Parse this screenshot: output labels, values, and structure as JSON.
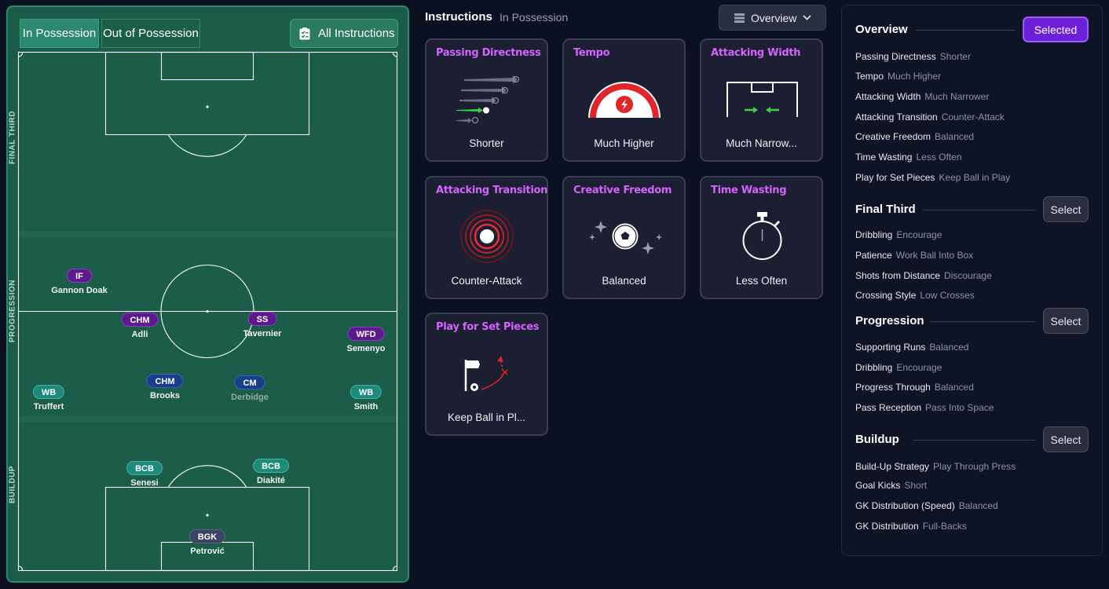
{
  "pitch": {
    "tabs": {
      "in_possession": "In Possession",
      "out_of_possession": "Out of Possession",
      "all_instructions": "All Instructions"
    },
    "zones": {
      "final_third": "FINAL THIRD",
      "progression": "PROGRESSION",
      "buildup": "BUILDUP"
    },
    "players": [
      {
        "role": "IF",
        "name": "Gannon Doak",
        "color": "purple"
      },
      {
        "role": "CHM",
        "name": "Adli",
        "color": "purple"
      },
      {
        "role": "SS",
        "name": "Tavernier",
        "color": "purple"
      },
      {
        "role": "WFD",
        "name": "Semenyo",
        "color": "purple"
      },
      {
        "role": "WB",
        "name": "Truffert",
        "color": "teal"
      },
      {
        "role": "CHM",
        "name": "Brooks",
        "color": "blue"
      },
      {
        "role": "CM",
        "name": "Derbidge",
        "color": "blue"
      },
      {
        "role": "WB",
        "name": "Smith",
        "color": "teal"
      },
      {
        "role": "BCB",
        "name": "Senesi",
        "color": "teal"
      },
      {
        "role": "BCB",
        "name": "Diakité",
        "color": "teal"
      },
      {
        "role": "BGK",
        "name": "Petrović",
        "color": "slate"
      }
    ]
  },
  "instructions": {
    "title": "Instructions",
    "subtitle": "In Possession",
    "view_button": "Overview",
    "cards": [
      {
        "title": "Passing Directness",
        "value": "Shorter",
        "icon": "passing-arrows-icon"
      },
      {
        "title": "Tempo",
        "value": "Much Higher",
        "icon": "tempo-gauge-icon"
      },
      {
        "title": "Attacking Width",
        "value": "Much Narrow...",
        "icon": "width-goal-icon"
      },
      {
        "title": "Attacking Transition",
        "value": "Counter-Attack",
        "icon": "transition-rings-icon"
      },
      {
        "title": "Creative Freedom",
        "value": "Balanced",
        "icon": "sparkle-ball-icon"
      },
      {
        "title": "Time Wasting",
        "value": "Less Often",
        "icon": "stopwatch-icon"
      },
      {
        "title": "Play for Set Pieces",
        "value": "Keep Ball in Pl...",
        "icon": "corner-flag-icon"
      }
    ]
  },
  "overview": {
    "sections": [
      {
        "title": "Overview",
        "button": "Selected",
        "items": [
          {
            "label": "Passing Directness",
            "value": "Shorter"
          },
          {
            "label": "Tempo",
            "value": "Much Higher"
          },
          {
            "label": "Attacking Width",
            "value": "Much Narrower"
          },
          {
            "label": "Attacking Transition",
            "value": "Counter-Attack"
          },
          {
            "label": "Creative Freedom",
            "value": "Balanced"
          },
          {
            "label": "Time Wasting",
            "value": "Less Often"
          },
          {
            "label": "Play for Set Pieces",
            "value": "Keep Ball in Play"
          }
        ]
      },
      {
        "title": "Final Third",
        "button": "Select",
        "items": [
          {
            "label": "Dribbling",
            "value": "Encourage"
          },
          {
            "label": "Patience",
            "value": "Work Ball Into Box"
          },
          {
            "label": "Shots from Distance",
            "value": "Discourage"
          },
          {
            "label": "Crossing Style",
            "value": "Low Crosses"
          }
        ]
      },
      {
        "title": "Progression",
        "button": "Select",
        "items": [
          {
            "label": "Supporting Runs",
            "value": "Balanced"
          },
          {
            "label": "Dribbling",
            "value": "Encourage"
          },
          {
            "label": "Progress Through",
            "value": "Balanced"
          },
          {
            "label": "Pass Reception",
            "value": "Pass Into Space"
          }
        ]
      },
      {
        "title": "Buildup",
        "button": "Select",
        "items": [
          {
            "label": "Build-Up Strategy",
            "value": "Play Through Press"
          },
          {
            "label": "Goal Kicks",
            "value": "Short"
          },
          {
            "label": "GK Distribution (Speed)",
            "value": "Balanced"
          },
          {
            "label": "GK Distribution",
            "value": "Full-Backs"
          }
        ]
      }
    ]
  },
  "colors": {
    "pitch": "#1a5c47",
    "accent_purple": "#d663ff",
    "selected_button": "#6c21d8"
  }
}
